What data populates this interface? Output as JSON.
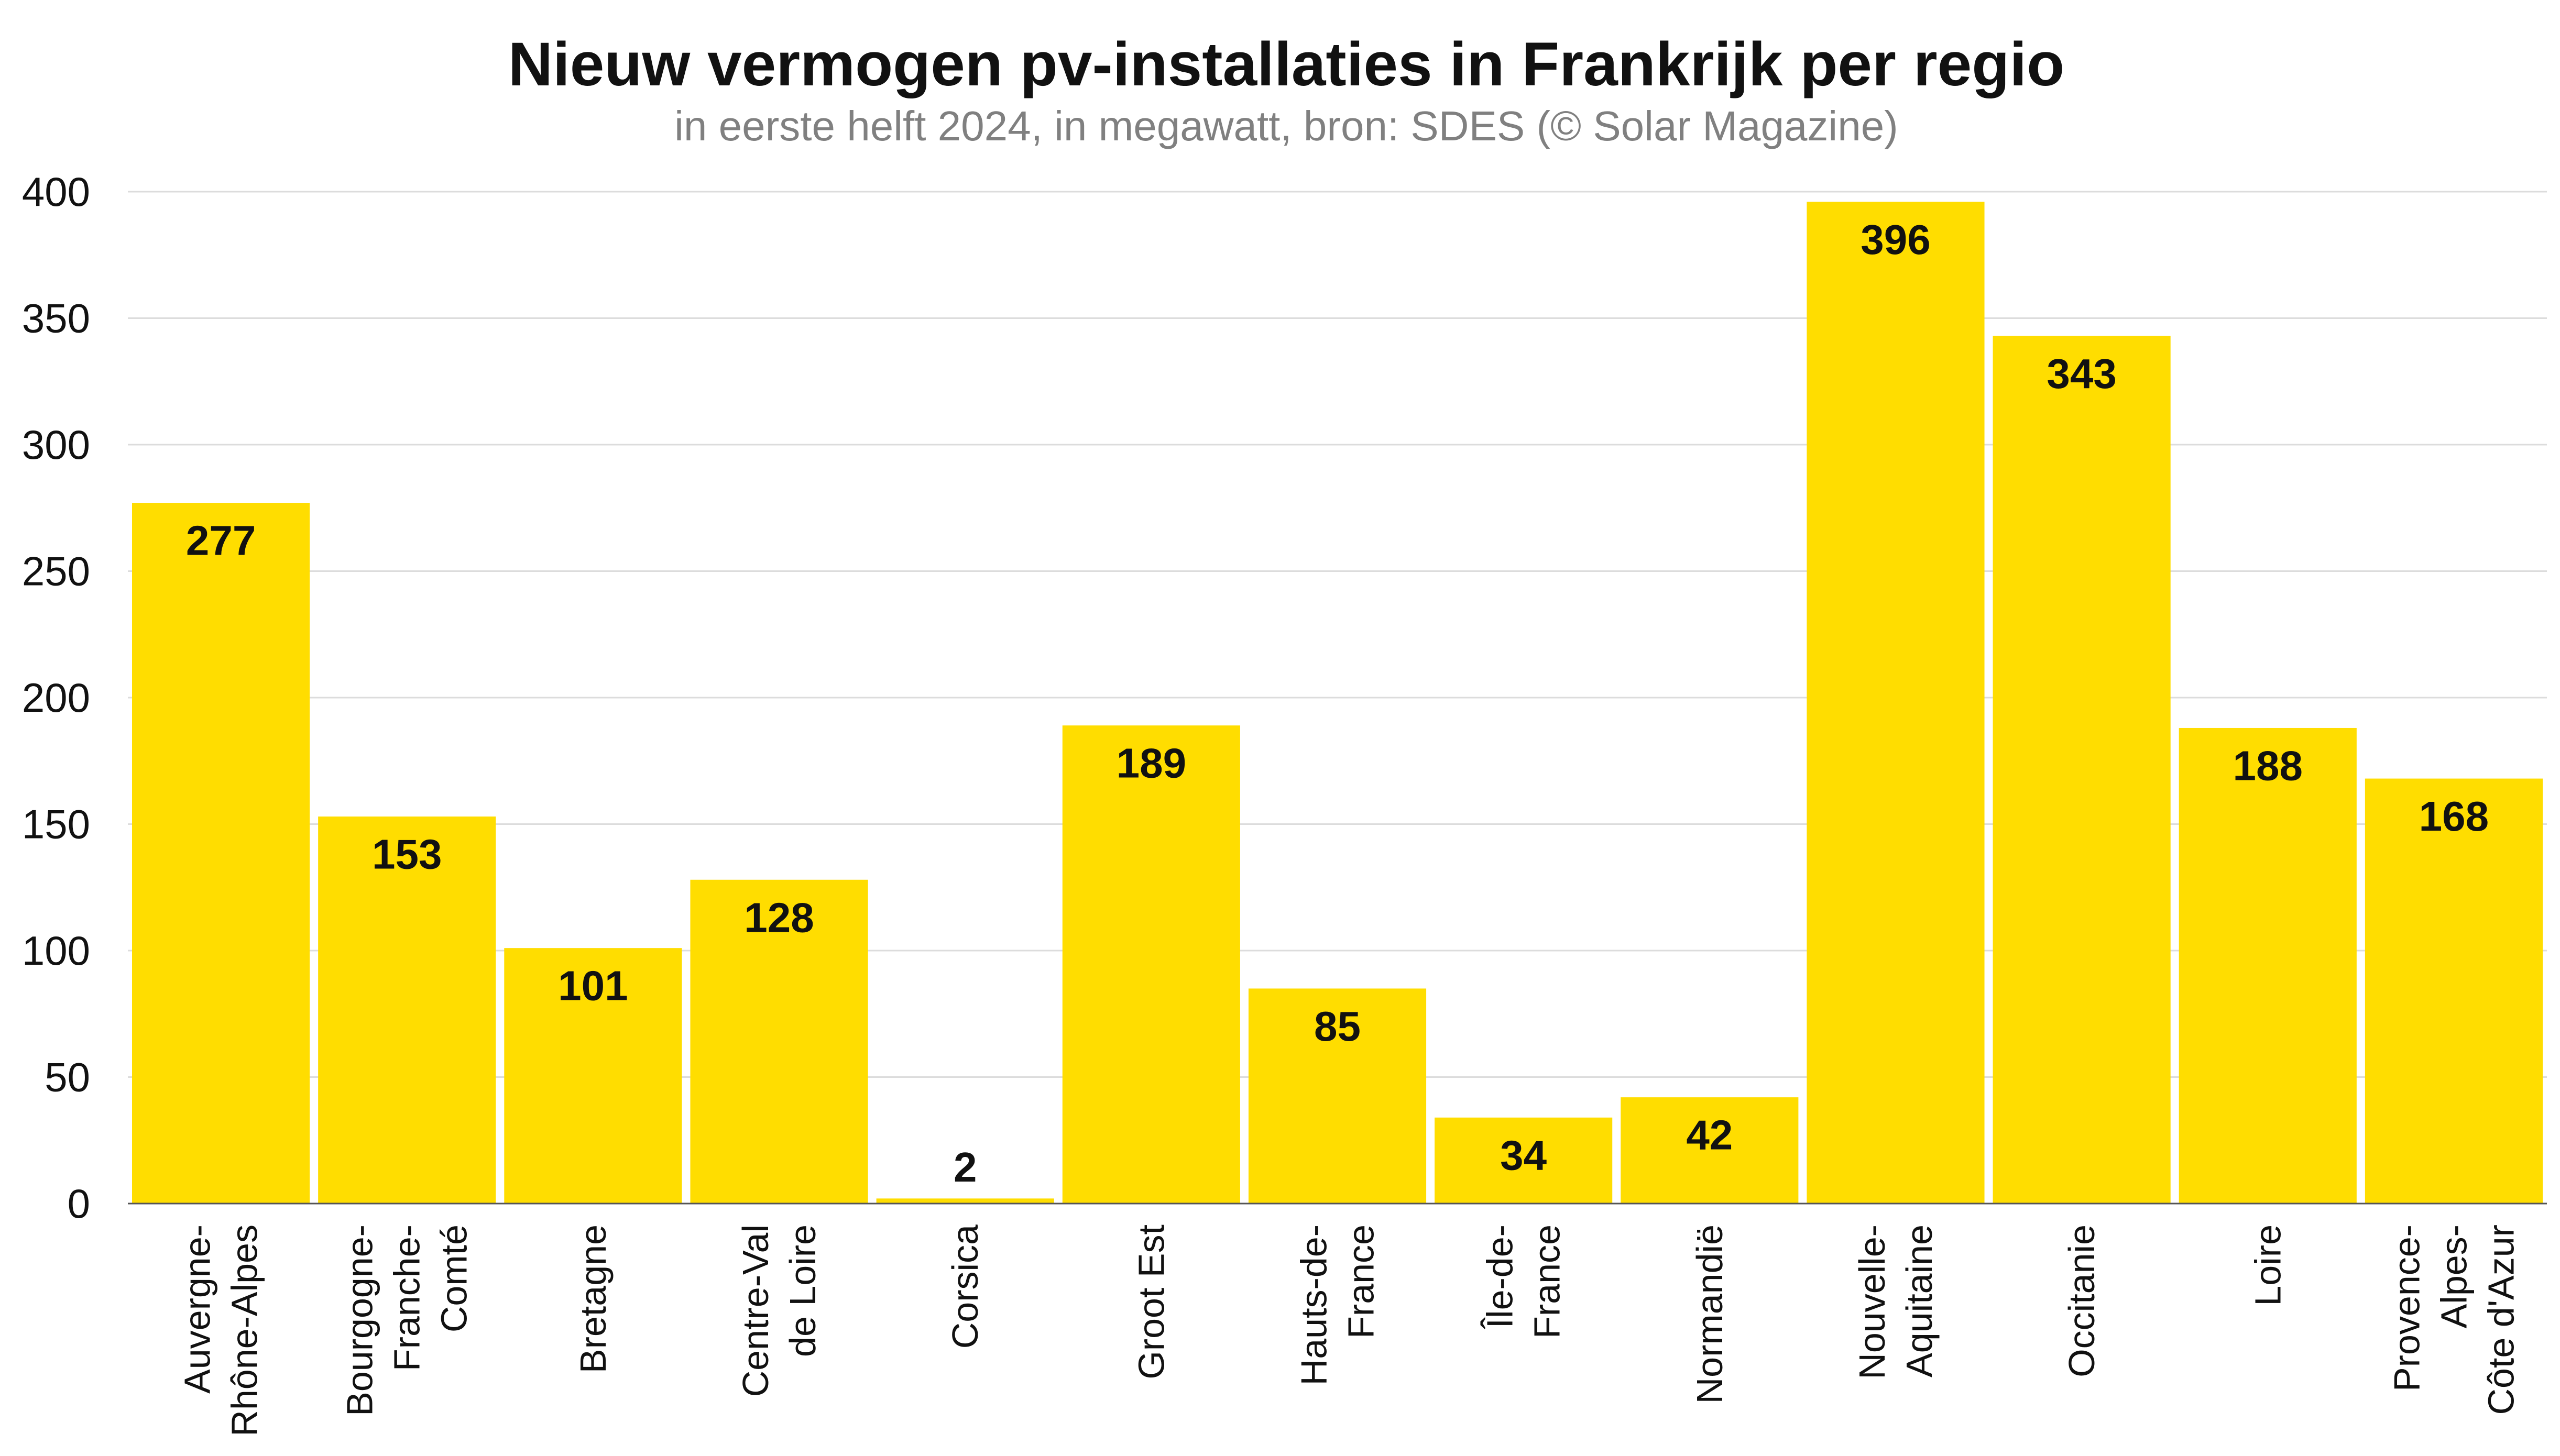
{
  "chart_data": {
    "type": "bar",
    "title": "Nieuw vermogen pv-installaties in Frankrijk per regio",
    "subtitle": "in eerste helft 2024, in megawatt, bron: SDES (© Solar Magazine)",
    "xlabel": "",
    "ylabel": "",
    "categories": [
      [
        "Auvergne-",
        "Rhône-Alpes"
      ],
      [
        "Bourgogne-",
        "Franche-",
        "Comté"
      ],
      [
        "Bretagne"
      ],
      [
        "Centre-Val",
        "de Loire"
      ],
      [
        "Corsica"
      ],
      [
        "Groot Est"
      ],
      [
        "Hauts-de-",
        "France"
      ],
      [
        "Île-de-",
        "France"
      ],
      [
        "Normandië"
      ],
      [
        "Nouvelle-",
        "Aquitaine"
      ],
      [
        "Occitanie"
      ],
      [
        "Loire"
      ],
      [
        "Provence-",
        "Alpes-",
        "Côte d'Azur"
      ]
    ],
    "values": [
      277,
      153,
      101,
      128,
      2,
      189,
      85,
      34,
      42,
      396,
      343,
      188,
      168
    ],
    "ylim": [
      0,
      400
    ],
    "yticks": [
      0,
      50,
      100,
      150,
      200,
      250,
      300,
      350,
      400
    ],
    "grid": true,
    "legend": "none",
    "data_labels": true
  },
  "colors": {
    "bar": "#FFDD00",
    "grid": "#dcdcdc",
    "baseline": "#555555",
    "text": "#111111",
    "subtitle": "#808080",
    "background": "#ffffff"
  }
}
